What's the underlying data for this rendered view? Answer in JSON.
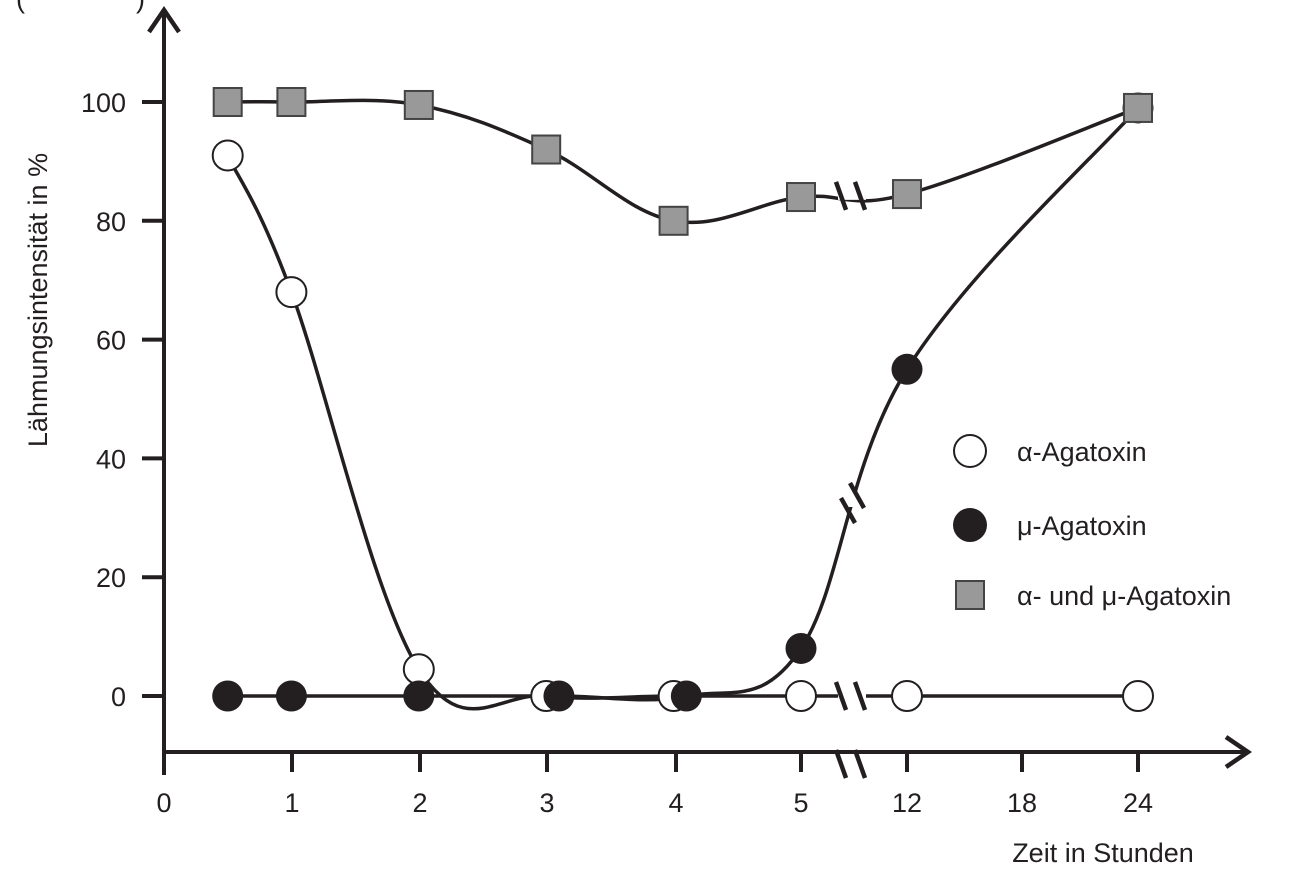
{
  "chart_data": {
    "type": "line",
    "title": "",
    "xlabel": "Zeit in Stunden",
    "ylabel": "Lähmungsintensität in %",
    "top_left_fragment": "(          )",
    "x_ticks": [
      "0",
      "1",
      "2",
      "3",
      "4",
      "5",
      "12",
      "18",
      "24"
    ],
    "y_ticks": [
      "0",
      "20",
      "40",
      "60",
      "80",
      "100"
    ],
    "ylim": [
      -9,
      115
    ],
    "axis_break": "between 5 and 12 hours",
    "grid": false,
    "legend_position": "right-middle",
    "legend": [
      {
        "label": "α-Agatoxin",
        "marker": "open-circle"
      },
      {
        "label": "μ-Agatoxin",
        "marker": "filled-circle"
      },
      {
        "label": "α- und μ-Agatoxin",
        "marker": "gray-square"
      }
    ],
    "series": [
      {
        "name": "α- und μ-Agatoxin",
        "marker": "gray-square",
        "color": "#999999",
        "x": [
          0.5,
          1,
          2,
          3,
          4,
          5,
          12,
          24
        ],
        "values": [
          100,
          100,
          99.5,
          92,
          80,
          84,
          84.5,
          99
        ]
      },
      {
        "name": "α-Agatoxin",
        "marker": "open-circle",
        "color": "#ffffff",
        "x": [
          0.5,
          1,
          2,
          3,
          4,
          5,
          12,
          24
        ],
        "values": [
          91,
          68,
          4.5,
          0,
          0,
          0,
          0,
          0
        ]
      },
      {
        "name": "μ-Agatoxin",
        "marker": "filled-circle",
        "color": "#231f20",
        "x": [
          0.5,
          1,
          2,
          3.1,
          4.1,
          5,
          12,
          24
        ],
        "values": [
          0,
          0,
          0,
          0,
          0,
          8,
          55,
          99
        ]
      }
    ]
  },
  "colors": {
    "ink": "#231f20",
    "square_fill": "#999999",
    "square_stroke": "#444444",
    "background": "#ffffff"
  }
}
